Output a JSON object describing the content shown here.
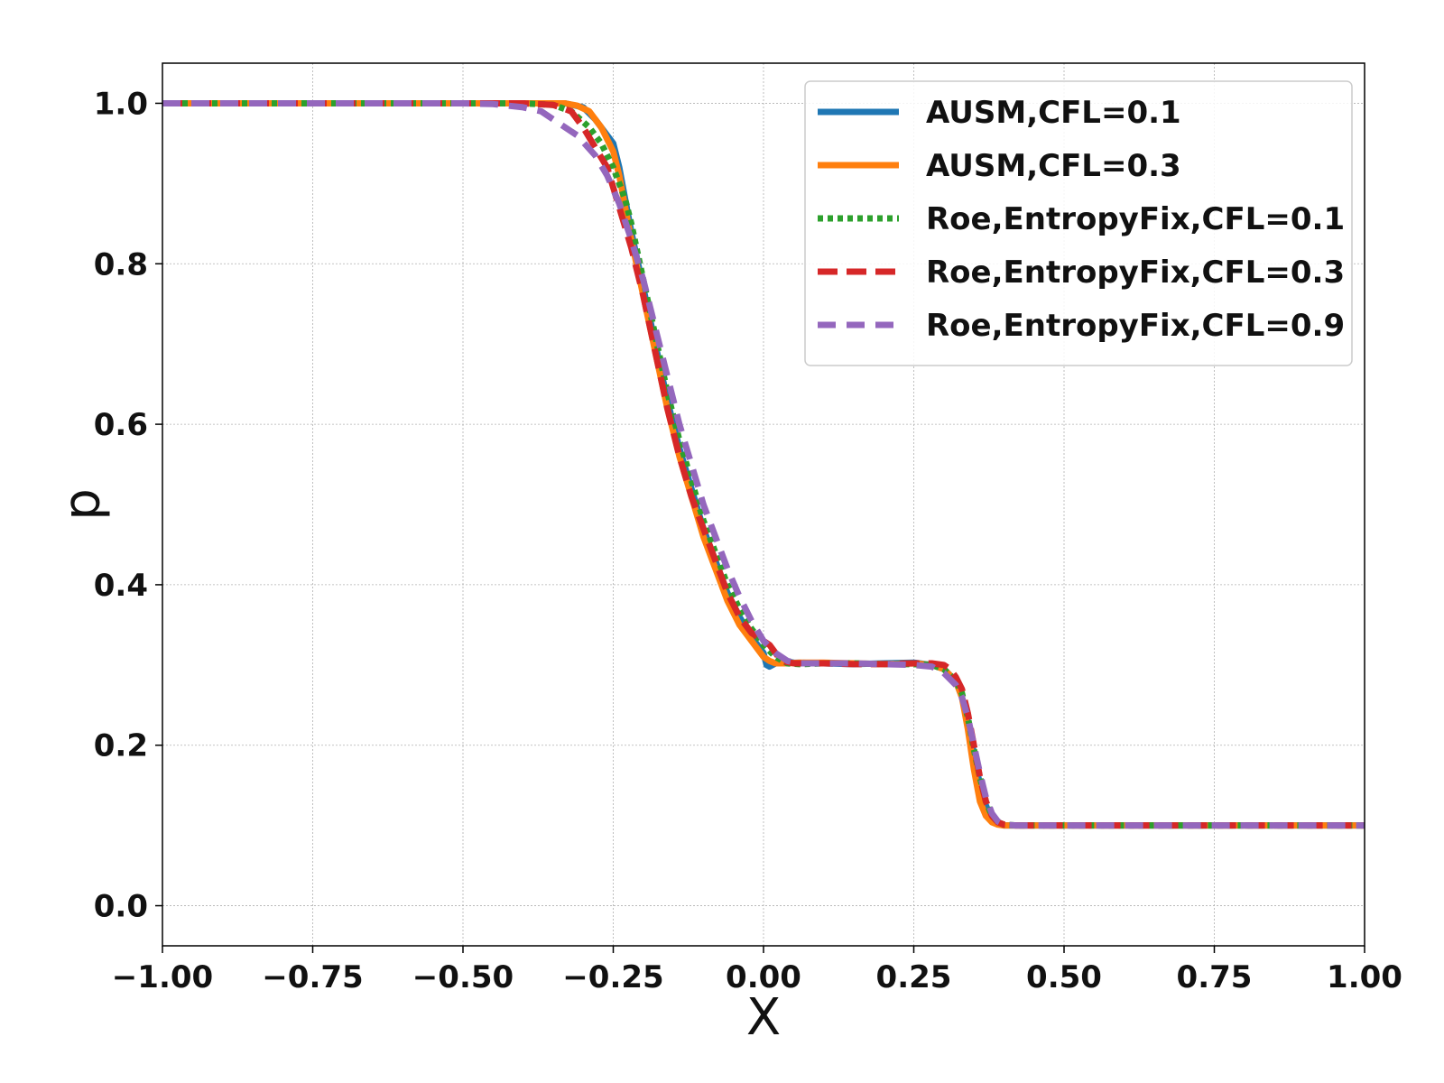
{
  "chart_data": {
    "type": "line",
    "title": "",
    "xlabel": "X",
    "ylabel": "p",
    "xlim": [
      -1.0,
      1.0
    ],
    "ylim": [
      -0.05,
      1.05
    ],
    "x_ticks": [
      -1.0,
      -0.75,
      -0.5,
      -0.25,
      0.0,
      0.25,
      0.5,
      0.75,
      1.0
    ],
    "x_tick_labels": [
      "−1.00",
      "−0.75",
      "−0.50",
      "−0.25",
      "0.00",
      "0.25",
      "0.50",
      "0.75",
      "1.00"
    ],
    "y_ticks": [
      0.0,
      0.2,
      0.4,
      0.6,
      0.8,
      1.0
    ],
    "y_tick_labels": [
      "0.0",
      "0.2",
      "0.4",
      "0.6",
      "0.8",
      "1.0"
    ],
    "grid": true,
    "legend_position": "top-right",
    "series": [
      {
        "name": "AUSM,CFL=0.1",
        "color": "#1f77b4",
        "style": "solid",
        "x": [
          -1.0,
          -0.4,
          -0.33,
          -0.3,
          -0.28,
          -0.26,
          -0.25,
          -0.24,
          -0.23,
          -0.22,
          -0.2,
          -0.18,
          -0.16,
          -0.14,
          -0.12,
          -0.1,
          -0.08,
          -0.06,
          -0.04,
          -0.02,
          0.0,
          0.005,
          0.01,
          0.02,
          0.03,
          0.05,
          0.1,
          0.15,
          0.2,
          0.25,
          0.28,
          0.3,
          0.32,
          0.33,
          0.34,
          0.35,
          0.36,
          0.37,
          0.38,
          0.39,
          0.4,
          0.42,
          0.45,
          0.5,
          0.75,
          1.0
        ],
        "y": [
          1.0,
          1.0,
          1.0,
          0.995,
          0.98,
          0.96,
          0.95,
          0.92,
          0.88,
          0.84,
          0.77,
          0.7,
          0.63,
          0.57,
          0.52,
          0.47,
          0.43,
          0.39,
          0.36,
          0.335,
          0.315,
          0.3,
          0.298,
          0.302,
          0.305,
          0.303,
          0.302,
          0.301,
          0.302,
          0.303,
          0.3,
          0.295,
          0.28,
          0.26,
          0.23,
          0.19,
          0.15,
          0.125,
          0.108,
          0.102,
          0.1,
          0.1,
          0.1,
          0.1,
          0.1,
          0.1
        ]
      },
      {
        "name": "AUSM,CFL=0.3",
        "color": "#ff7f0e",
        "style": "solid",
        "x": [
          -1.0,
          -0.4,
          -0.33,
          -0.31,
          -0.29,
          -0.27,
          -0.25,
          -0.24,
          -0.23,
          -0.22,
          -0.2,
          -0.18,
          -0.16,
          -0.14,
          -0.12,
          -0.1,
          -0.08,
          -0.06,
          -0.04,
          -0.02,
          0.0,
          0.01,
          0.02,
          0.04,
          0.06,
          0.1,
          0.15,
          0.2,
          0.25,
          0.28,
          0.3,
          0.32,
          0.33,
          0.34,
          0.35,
          0.36,
          0.37,
          0.38,
          0.39,
          0.4,
          0.42,
          0.45,
          0.5,
          0.75,
          1.0
        ],
        "y": [
          1.0,
          1.0,
          1.0,
          0.997,
          0.99,
          0.97,
          0.94,
          0.91,
          0.87,
          0.83,
          0.76,
          0.69,
          0.62,
          0.56,
          0.51,
          0.46,
          0.42,
          0.38,
          0.35,
          0.33,
          0.31,
          0.305,
          0.302,
          0.302,
          0.303,
          0.303,
          0.302,
          0.301,
          0.302,
          0.3,
          0.295,
          0.28,
          0.26,
          0.22,
          0.17,
          0.13,
          0.112,
          0.104,
          0.101,
          0.1,
          0.1,
          0.1,
          0.1,
          0.1,
          0.1
        ]
      },
      {
        "name": "Roe,EntropyFix,CFL=0.1",
        "color": "#2ca02c",
        "style": "dotted",
        "x": [
          -1.0,
          -0.4,
          -0.35,
          -0.32,
          -0.29,
          -0.27,
          -0.25,
          -0.23,
          -0.22,
          -0.2,
          -0.18,
          -0.16,
          -0.14,
          -0.12,
          -0.1,
          -0.08,
          -0.06,
          -0.04,
          -0.02,
          0.0,
          0.02,
          0.04,
          0.06,
          0.1,
          0.15,
          0.2,
          0.25,
          0.28,
          0.3,
          0.32,
          0.33,
          0.34,
          0.35,
          0.36,
          0.37,
          0.38,
          0.39,
          0.4,
          0.42,
          0.45,
          0.5,
          0.75,
          1.0
        ],
        "y": [
          1.0,
          1.0,
          0.998,
          0.99,
          0.97,
          0.95,
          0.92,
          0.88,
          0.85,
          0.78,
          0.71,
          0.64,
          0.58,
          0.53,
          0.48,
          0.44,
          0.4,
          0.37,
          0.345,
          0.325,
          0.31,
          0.302,
          0.301,
          0.302,
          0.302,
          0.301,
          0.301,
          0.3,
          0.295,
          0.28,
          0.265,
          0.235,
          0.195,
          0.16,
          0.13,
          0.112,
          0.104,
          0.101,
          0.1,
          0.1,
          0.1,
          0.1,
          0.1
        ]
      },
      {
        "name": "Roe,EntropyFix,CFL=0.3",
        "color": "#d62728",
        "style": "dashed",
        "x": [
          -1.0,
          -0.4,
          -0.35,
          -0.32,
          -0.3,
          -0.28,
          -0.26,
          -0.24,
          -0.22,
          -0.2,
          -0.18,
          -0.16,
          -0.14,
          -0.12,
          -0.1,
          -0.08,
          -0.06,
          -0.04,
          -0.02,
          0.0,
          0.01,
          0.02,
          0.03,
          0.05,
          0.1,
          0.15,
          0.2,
          0.25,
          0.28,
          0.3,
          0.31,
          0.32,
          0.33,
          0.34,
          0.35,
          0.36,
          0.37,
          0.38,
          0.39,
          0.4,
          0.42,
          0.45,
          0.5,
          0.75,
          1.0
        ],
        "y": [
          1.0,
          1.0,
          0.998,
          0.99,
          0.97,
          0.945,
          0.92,
          0.87,
          0.82,
          0.76,
          0.69,
          0.62,
          0.56,
          0.51,
          0.47,
          0.43,
          0.39,
          0.36,
          0.34,
          0.33,
          0.325,
          0.315,
          0.305,
          0.302,
          0.302,
          0.301,
          0.301,
          0.302,
          0.302,
          0.3,
          0.295,
          0.285,
          0.27,
          0.24,
          0.2,
          0.16,
          0.13,
          0.112,
          0.104,
          0.101,
          0.1,
          0.1,
          0.1,
          0.1,
          0.1
        ]
      },
      {
        "name": "Roe,EntropyFix,CFL=0.9",
        "color": "#9467bd",
        "style": "dashed-long",
        "x": [
          -1.0,
          -0.5,
          -0.45,
          -0.4,
          -0.37,
          -0.34,
          -0.31,
          -0.28,
          -0.26,
          -0.24,
          -0.22,
          -0.2,
          -0.18,
          -0.16,
          -0.14,
          -0.12,
          -0.1,
          -0.08,
          -0.06,
          -0.04,
          -0.02,
          0.0,
          0.02,
          0.04,
          0.06,
          0.1,
          0.15,
          0.2,
          0.25,
          0.28,
          0.3,
          0.32,
          0.33,
          0.34,
          0.35,
          0.36,
          0.37,
          0.38,
          0.39,
          0.4,
          0.42,
          0.45,
          0.5,
          0.75,
          1.0
        ],
        "y": [
          1.0,
          1.0,
          0.999,
          0.995,
          0.99,
          0.975,
          0.96,
          0.935,
          0.91,
          0.875,
          0.83,
          0.78,
          0.72,
          0.66,
          0.6,
          0.55,
          0.5,
          0.46,
          0.42,
          0.385,
          0.355,
          0.33,
          0.315,
          0.305,
          0.302,
          0.302,
          0.302,
          0.301,
          0.3,
          0.298,
          0.29,
          0.275,
          0.26,
          0.235,
          0.2,
          0.165,
          0.135,
          0.115,
          0.105,
          0.101,
          0.1,
          0.1,
          0.1,
          0.1,
          0.1
        ]
      }
    ]
  }
}
